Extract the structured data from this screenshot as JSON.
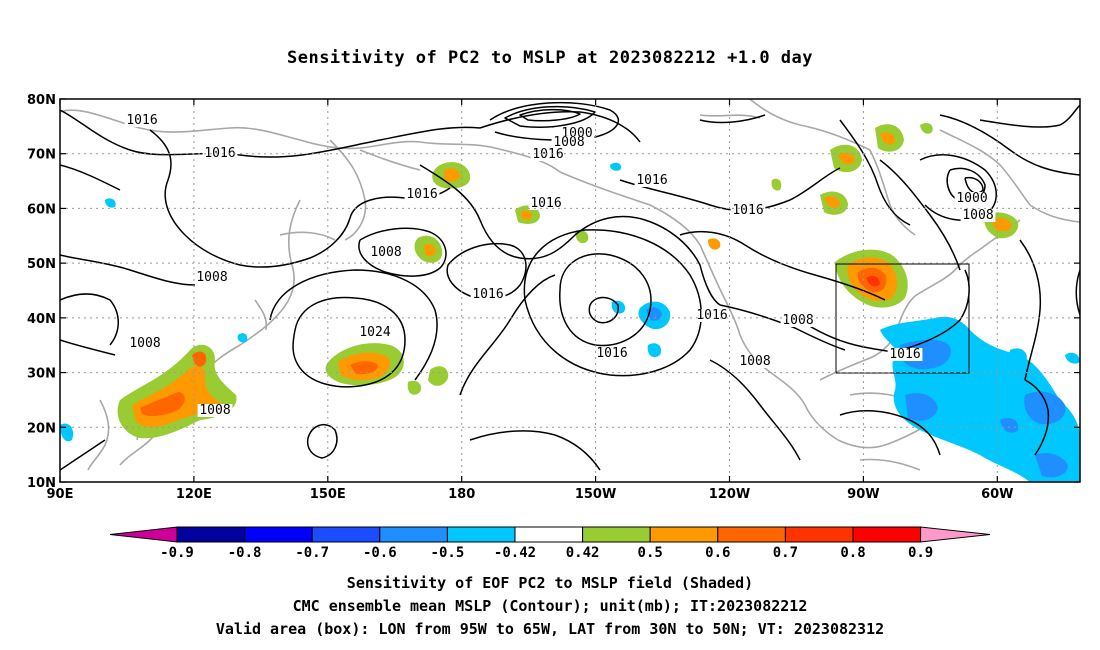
{
  "title": "Sensitivity of PC2 to MSLP at 2023082212 +1.0 day",
  "lat_labels": [
    "80N",
    "70N",
    "60N",
    "50N",
    "40N",
    "30N",
    "20N",
    "10N"
  ],
  "lon_labels": [
    "90E",
    "120E",
    "150E",
    "180",
    "150W",
    "120W",
    "90W",
    "60W"
  ],
  "contour_labels": [
    "1016",
    "1016",
    "1000",
    "1008",
    "1016",
    "1016",
    "1016",
    "1016",
    "1016",
    "1000",
    "1008",
    "1008",
    "1008",
    "1016",
    "1024",
    "1016",
    "1016",
    "1008",
    "1008",
    "1016",
    "1008",
    "1008"
  ],
  "colorbar": {
    "colors": [
      "#00009f",
      "#0000ff",
      "#1c4cff",
      "#1f8fff",
      "#00c8ff",
      "#ffffff",
      "#99cc33",
      "#ff9900",
      "#ff6600",
      "#ff3300",
      "#ff0000"
    ],
    "under_color": "#cc0099",
    "over_color": "#ff99cc",
    "labels": [
      "-0.9",
      "-0.8",
      "-0.7",
      "-0.6",
      "-0.5",
      "-0.42",
      "0.42",
      "0.5",
      "0.6",
      "0.7",
      "0.8",
      "0.9"
    ]
  },
  "valid_box": {
    "lon_from": "95W",
    "lon_to": "65W",
    "lat_from": "30N",
    "lat_to": "50N"
  },
  "captions": {
    "line1": "Sensitivity of EOF PC2 to MSLP field (Shaded)",
    "line2": "CMC ensemble mean MSLP (Contour); unit(mb); IT:2023082212",
    "line3": "Valid area (box): LON from 95W to 65W, LAT from 30N to 50N; VT: 2023082312"
  }
}
